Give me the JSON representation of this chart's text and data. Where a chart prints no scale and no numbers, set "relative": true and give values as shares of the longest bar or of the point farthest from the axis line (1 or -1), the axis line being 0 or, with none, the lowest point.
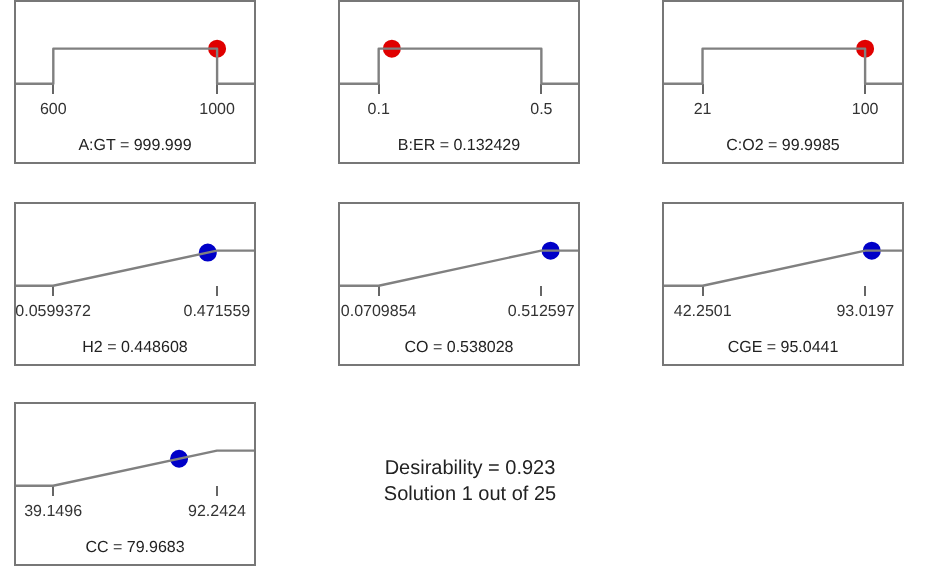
{
  "chart_data": [
    {
      "type": "line",
      "relative": true,
      "xlabel": "A:GT = 999.999",
      "xlim": [
        504,
        1095
      ],
      "xticks": [
        600,
        1000
      ],
      "series": [
        {
          "type": "line",
          "color": "#808080",
          "x": [
            504,
            600,
            600,
            1000,
            1000,
            1095
          ],
          "values": [
            0,
            0,
            1,
            1,
            0,
            0
          ]
        },
        {
          "type": "scatter",
          "color": "#e00000",
          "x": [
            999.999
          ],
          "values": [
            1
          ]
        }
      ]
    },
    {
      "type": "line",
      "relative": true,
      "xlabel": "B:ER = 0.132429",
      "xlim": [
        0,
        0.595
      ],
      "xticks": [
        0.1,
        0.5
      ],
      "series": [
        {
          "type": "line",
          "color": "#808080",
          "x": [
            0,
            0.1,
            0.1,
            0.5,
            0.5,
            0.595
          ],
          "values": [
            0,
            0,
            1,
            1,
            0,
            0
          ]
        },
        {
          "type": "scatter",
          "color": "#e00000",
          "x": [
            0.132429
          ],
          "values": [
            1
          ]
        }
      ]
    },
    {
      "type": "line",
      "relative": true,
      "xlabel": "C:O2 = 99.9985",
      "xlim": [
        1.3,
        118.9
      ],
      "xticks": [
        21,
        100
      ],
      "series": [
        {
          "type": "line",
          "color": "#808080",
          "x": [
            1.3,
            21,
            21,
            100,
            100,
            118.9
          ],
          "values": [
            0,
            0,
            1,
            1,
            0,
            0
          ]
        },
        {
          "type": "scatter",
          "color": "#e00000",
          "x": [
            99.9985
          ],
          "values": [
            1
          ]
        }
      ]
    },
    {
      "type": "line",
      "relative": true,
      "xlabel": "H2 = 0.448608",
      "xlim": [
        -0.0383,
        0.5698
      ],
      "xticks": [
        0.0599372,
        0.471559
      ],
      "series": [
        {
          "type": "line",
          "color": "#808080",
          "x": [
            -0.0383,
            0.0599372,
            0.471559,
            0.5698
          ],
          "values": [
            0,
            0,
            1,
            1
          ]
        },
        {
          "type": "scatter",
          "color": "#0000c8",
          "x": [
            0.448608
          ],
          "values": [
            0.944
          ]
        }
      ]
    },
    {
      "type": "line",
      "relative": true,
      "xlabel": "CO = 0.538028",
      "xlim": [
        -0.0394,
        0.618
      ],
      "xticks": [
        0.0709854,
        0.512597
      ],
      "series": [
        {
          "type": "line",
          "color": "#808080",
          "x": [
            -0.0394,
            0.0709854,
            0.512597,
            0.618
          ],
          "values": [
            0,
            0,
            1,
            1
          ]
        },
        {
          "type": "scatter",
          "color": "#0000c8",
          "x": [
            0.538028
          ],
          "values": [
            1
          ]
        }
      ]
    },
    {
      "type": "line",
      "relative": true,
      "xlabel": "CGE = 95.0441",
      "xlim": [
        29.56,
        105.1
      ],
      "xticks": [
        42.2501,
        93.0197
      ],
      "series": [
        {
          "type": "line",
          "color": "#808080",
          "x": [
            29.56,
            42.2501,
            93.0197,
            105.1
          ],
          "values": [
            0,
            0,
            1,
            1
          ]
        },
        {
          "type": "scatter",
          "color": "#0000c8",
          "x": [
            95.0441
          ],
          "values": [
            1
          ]
        }
      ]
    },
    {
      "type": "line",
      "relative": true,
      "xlabel": "CC = 79.9683",
      "xlim": [
        26.48,
        104.9
      ],
      "xticks": [
        39.1496,
        92.2424
      ],
      "series": [
        {
          "type": "line",
          "color": "#808080",
          "x": [
            26.48,
            39.1496,
            92.2424,
            104.9
          ],
          "values": [
            0,
            0,
            1,
            1
          ]
        },
        {
          "type": "scatter",
          "color": "#0000c8",
          "x": [
            79.9683
          ],
          "values": [
            0.769
          ]
        }
      ]
    },
    {
      "type": "other",
      "annotations": [
        "Desirability = 0.923",
        "Solution 1 out of 25"
      ]
    }
  ]
}
